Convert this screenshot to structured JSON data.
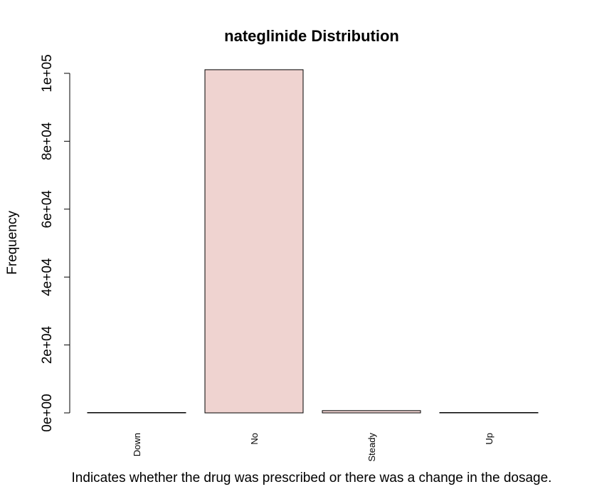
{
  "chart_data": {
    "type": "bar",
    "title": "nateglinide Distribution",
    "xlabel": "Indicates whether the drug was prescribed or there was a change in the dosage.",
    "ylabel": "Frequency",
    "categories": [
      "Down",
      "No",
      "Steady",
      "Up"
    ],
    "values": [
      11,
      101063,
      668,
      24
    ],
    "ylim": [
      0,
      100000
    ],
    "yticks": [
      "0e+00",
      "2e+04",
      "4e+04",
      "6e+04",
      "8e+04",
      "1e+05"
    ],
    "ytick_values": [
      0,
      20000,
      40000,
      60000,
      80000,
      100000
    ],
    "bar_color": "#EFD3D0",
    "grid": false,
    "legend": "none"
  }
}
